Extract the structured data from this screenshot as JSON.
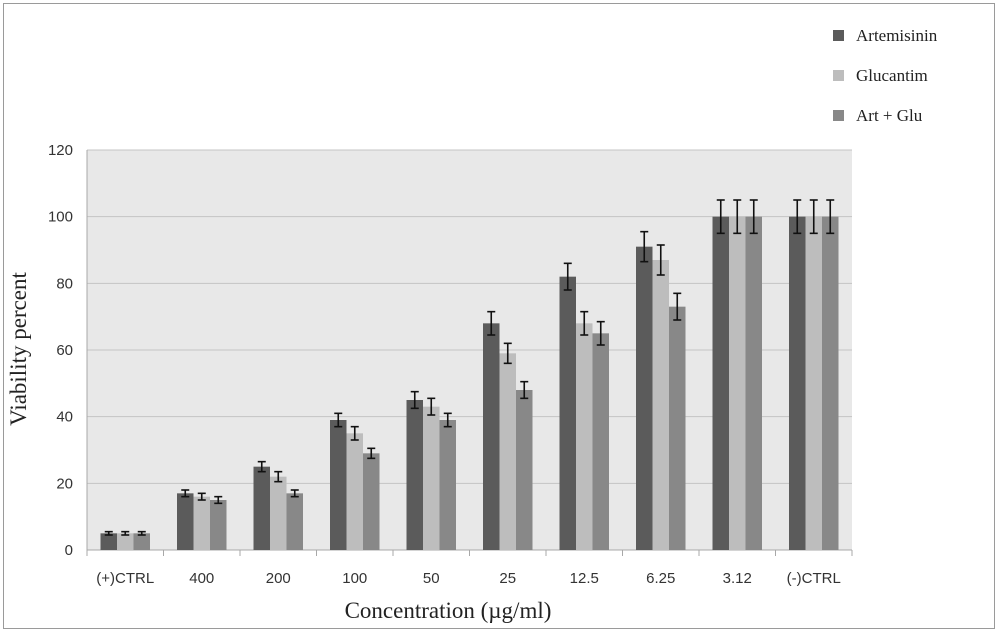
{
  "chart_data": {
    "type": "bar",
    "title": "",
    "xlabel": "Concentration (µg/ml)",
    "ylabel": "Viability percent",
    "ylim": [
      0,
      120
    ],
    "yticks": [
      0,
      20,
      40,
      60,
      80,
      100,
      120
    ],
    "grid": true,
    "legend_position": "top-right",
    "categories": [
      "(+)CTRL",
      "400",
      "200",
      "100",
      "50",
      "25",
      "12.5",
      "6.25",
      "3.12",
      "(-)CTRL"
    ],
    "series": [
      {
        "name": "Artemisinin",
        "color": "#5b5b5b",
        "values": [
          5,
          17,
          25,
          39,
          45,
          68,
          82,
          91,
          100,
          100
        ],
        "errors": [
          0.5,
          1,
          1.5,
          2,
          2.5,
          3.5,
          4,
          4.5,
          5,
          5
        ]
      },
      {
        "name": "Glucantim",
        "color": "#bdbdbd",
        "values": [
          5,
          16,
          22,
          35,
          43,
          59,
          68,
          87,
          100,
          100
        ],
        "errors": [
          0.5,
          1,
          1.5,
          2,
          2.5,
          3,
          3.5,
          4.5,
          5,
          5
        ]
      },
      {
        "name": "Art + Glu",
        "color": "#888888",
        "values": [
          5,
          15,
          17,
          29,
          39,
          48,
          65,
          73,
          100,
          100
        ],
        "errors": [
          0.5,
          1,
          1,
          1.5,
          2,
          2.5,
          3.5,
          4,
          5,
          5
        ]
      }
    ]
  }
}
